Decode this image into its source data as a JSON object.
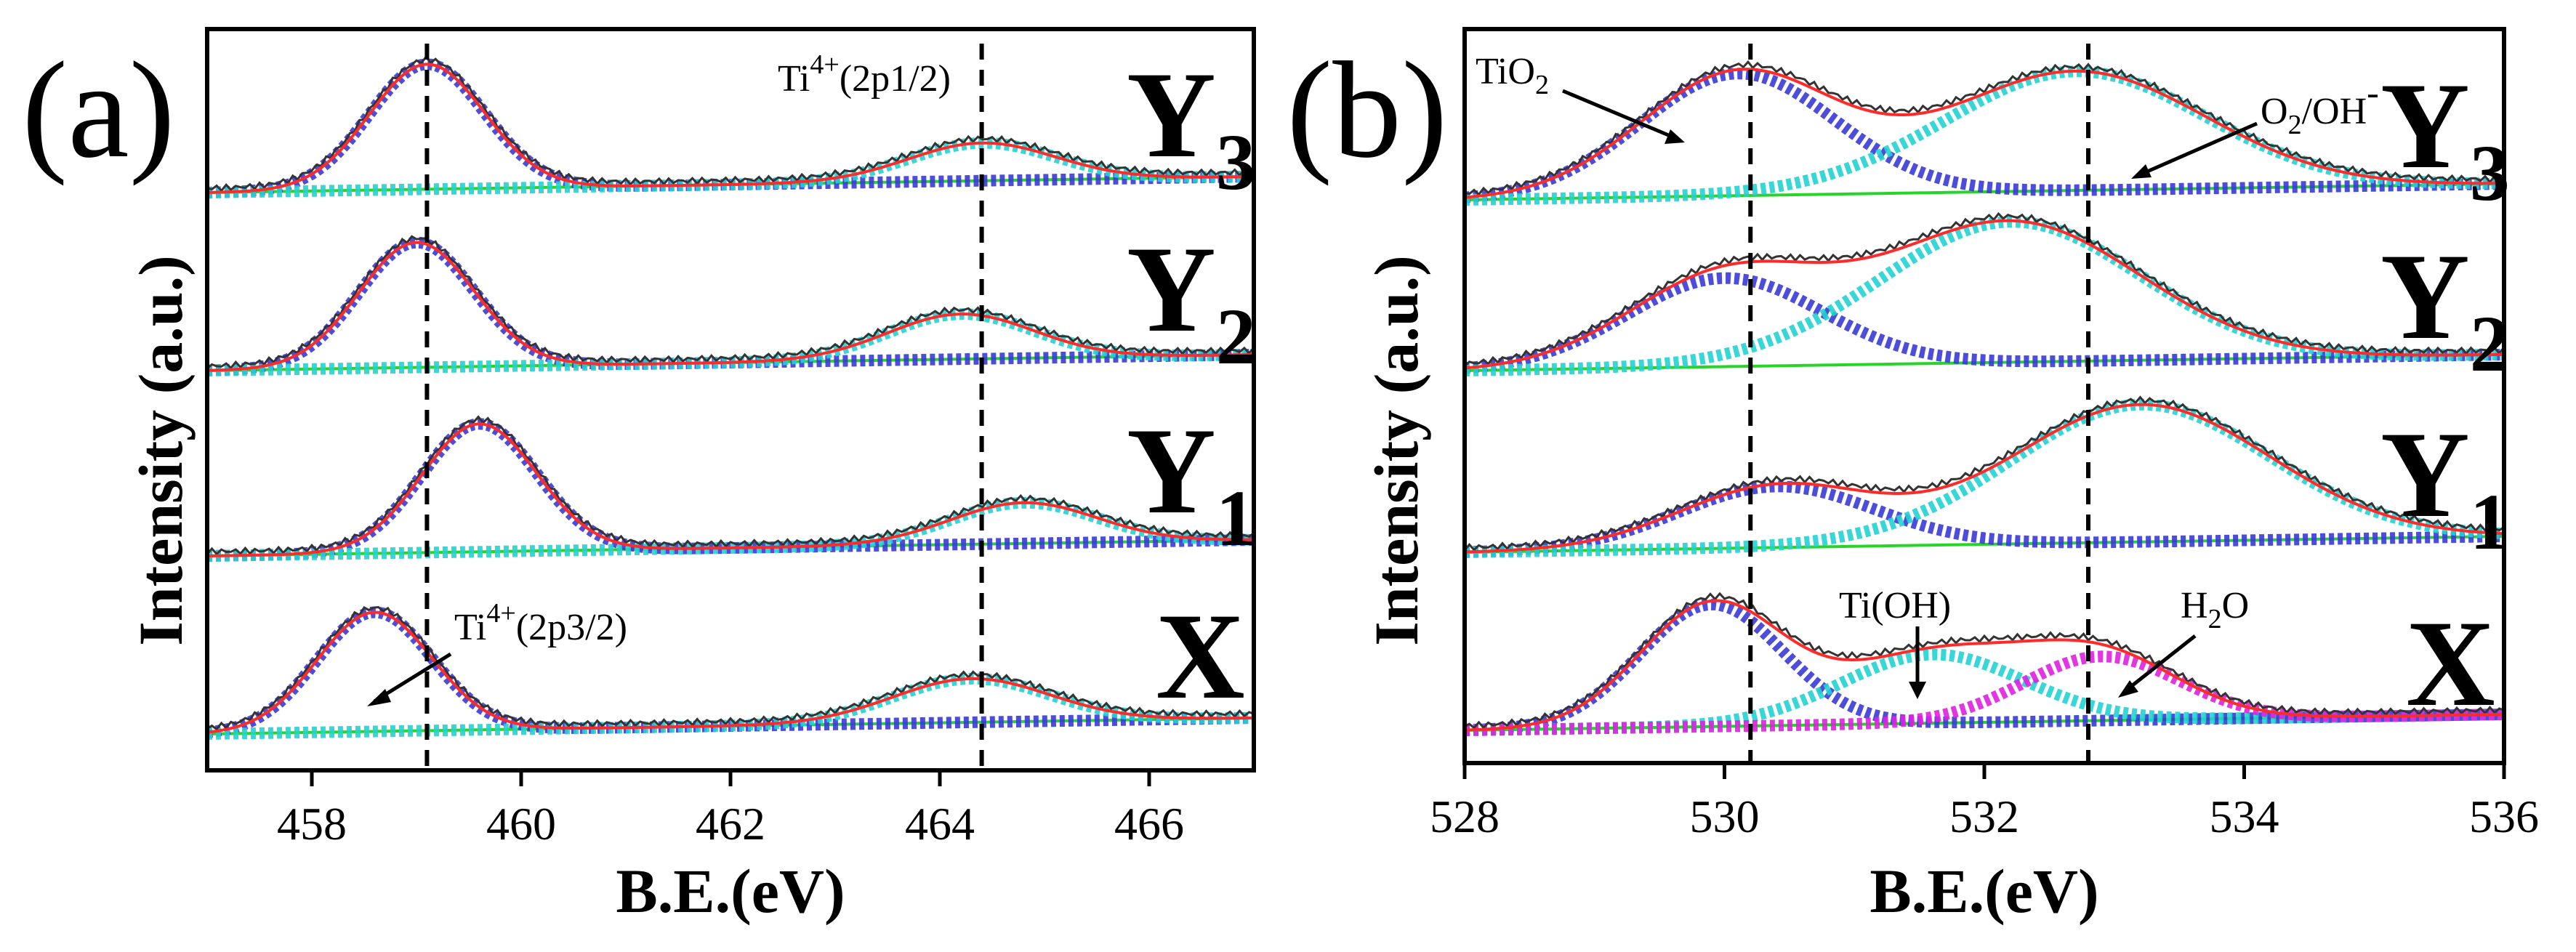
{
  "chart_data": [
    {
      "panel": "(a)",
      "type": "line",
      "title": "",
      "xlabel": "B.E.(eV)",
      "ylabel": "Intensity (a.u.)",
      "xlim": [
        457,
        467
      ],
      "xticks": [
        458,
        460,
        462,
        464,
        466
      ],
      "x_tick_labels": [
        "458",
        "460",
        "462",
        "464",
        "466"
      ],
      "reference_lines_eV": [
        459.1,
        464.4
      ],
      "annotations": [
        {
          "text": "Ti4+(2p1/2)",
          "main": "Ti",
          "sup": "4+",
          "tail": "(2p1/2)",
          "x": 464.4,
          "position": "top"
        },
        {
          "text": "Ti4+(2p3/2)",
          "main": "Ti",
          "sup": "4+",
          "tail": "(2p3/2)",
          "x": 459.5,
          "arrow_to_x": 458.2
        }
      ],
      "series": [
        {
          "name": "Y3",
          "label_main": "Y",
          "label_sub": "3",
          "peaks": [
            {
              "center": 459.1,
              "height": 0.86,
              "width": 0.55
            },
            {
              "center": 464.4,
              "height": 0.26,
              "width": 0.7
            }
          ]
        },
        {
          "name": "Y2",
          "label_main": "Y",
          "label_sub": "2",
          "peaks": [
            {
              "center": 459.0,
              "height": 0.86,
              "width": 0.55
            },
            {
              "center": 464.2,
              "height": 0.31,
              "width": 0.7
            }
          ]
        },
        {
          "name": "Y1",
          "label_main": "Y",
          "label_sub": "1",
          "peaks": [
            {
              "center": 459.6,
              "height": 0.88,
              "width": 0.55
            },
            {
              "center": 464.8,
              "height": 0.28,
              "width": 0.7
            }
          ]
        },
        {
          "name": "X",
          "label_main": "X",
          "label_sub": "",
          "peaks": [
            {
              "center": 458.6,
              "height": 0.82,
              "width": 0.55
            },
            {
              "center": 464.3,
              "height": 0.3,
              "width": 0.75
            }
          ]
        }
      ]
    },
    {
      "panel": "(b)",
      "type": "line",
      "title": "",
      "xlabel": "B.E.(eV)",
      "ylabel": "Intensity (a.u.)",
      "xlim": [
        528,
        536
      ],
      "xticks": [
        528,
        530,
        532,
        534,
        536
      ],
      "x_tick_labels": [
        "528",
        "530",
        "532",
        "534",
        "536"
      ],
      "reference_lines_eV": [
        530.2,
        532.8
      ],
      "annotations": [
        {
          "text": "TiO2",
          "main": "TiO",
          "sub": "2",
          "x": 529.2,
          "arrow_to_x": 529.9
        },
        {
          "text": "O2/OH-",
          "main": "O",
          "sub": "2",
          "tail": "/OH",
          "sup": "-",
          "x": 533.9,
          "arrow_to_x": 533.0
        },
        {
          "text": "Ti(OH)",
          "main": "Ti(OH)",
          "x": 531.7,
          "arrow_to_x": 531.6
        },
        {
          "text": "H2O",
          "main": "H",
          "sub": "2",
          "tail": "O",
          "x": 533.2,
          "arrow_to_x": 532.8
        }
      ],
      "series": [
        {
          "name": "Y3",
          "label_main": "Y",
          "label_sub": "3",
          "peaks": [
            {
              "center": 530.1,
              "height": 0.8,
              "width": 0.75
            },
            {
              "center": 532.7,
              "height": 0.78,
              "width": 1.0
            }
          ]
        },
        {
          "name": "Y2",
          "label_main": "Y",
          "label_sub": "2",
          "peaks": [
            {
              "center": 530.0,
              "height": 0.58,
              "width": 0.75
            },
            {
              "center": 532.2,
              "height": 0.92,
              "width": 1.0
            }
          ]
        },
        {
          "name": "Y1",
          "label_main": "Y",
          "label_sub": "1",
          "peaks": [
            {
              "center": 530.4,
              "height": 0.4,
              "width": 0.75
            },
            {
              "center": 533.2,
              "height": 0.9,
              "width": 1.0
            }
          ]
        },
        {
          "name": "X",
          "label_main": "X",
          "label_sub": "",
          "peaks": [
            {
              "center": 529.9,
              "height": 0.8,
              "width": 0.55
            },
            {
              "center": 531.6,
              "height": 0.45,
              "width": 0.7
            },
            {
              "center": 532.9,
              "height": 0.42,
              "width": 0.6
            }
          ]
        }
      ]
    }
  ],
  "colors": {
    "raw": "#333333",
    "envelope": "#ff2a2a",
    "component_1": "#3a3ad8",
    "component_2": "#22d3d3",
    "component_3": "#e020e0",
    "background": "#27d427",
    "reference_line": "#000000"
  }
}
